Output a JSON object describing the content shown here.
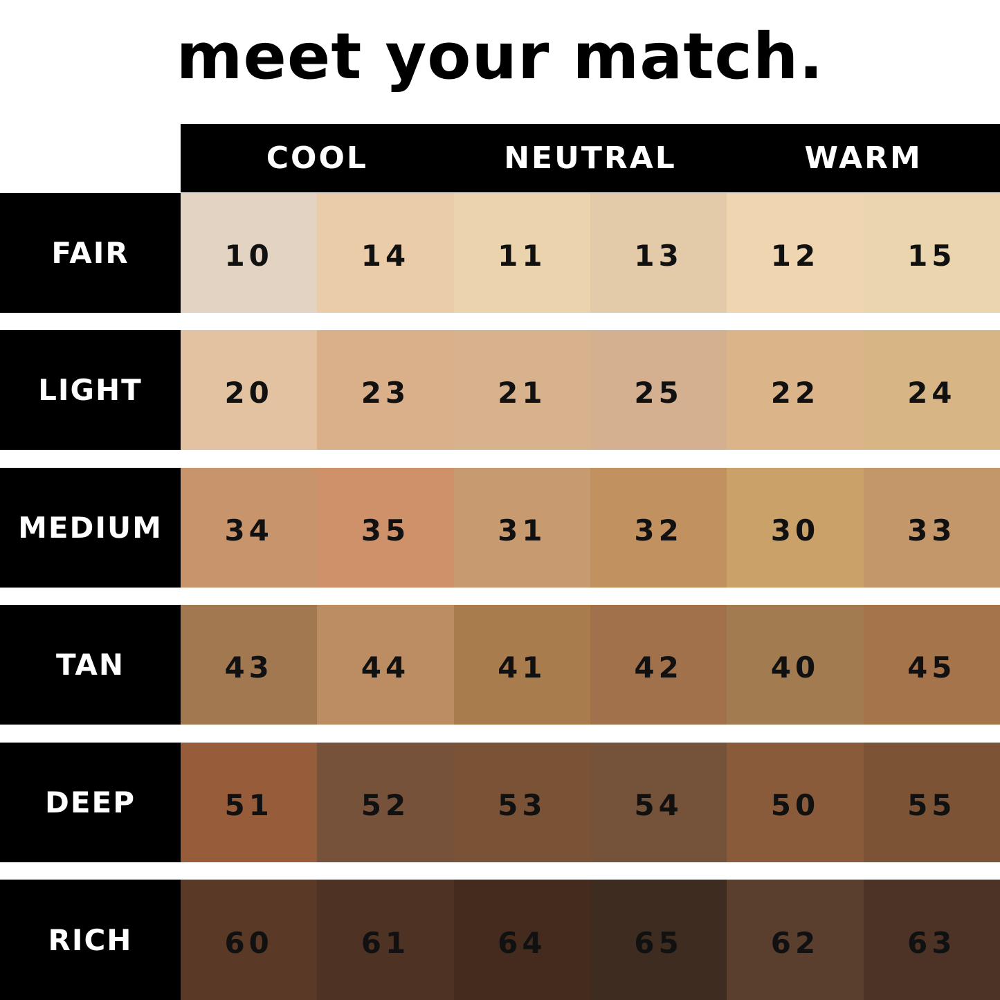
{
  "title": "meet your match.",
  "columns": [
    "COOL",
    "NEUTRAL",
    "WARM"
  ],
  "rows": [
    {
      "label": "FAIR",
      "shades": [
        {
          "num": "10",
          "color": "#e3d3c2"
        },
        {
          "num": "14",
          "color": "#ebcca8"
        },
        {
          "num": "11",
          "color": "#ebd3ae"
        },
        {
          "num": "13",
          "color": "#e3caa9"
        },
        {
          "num": "12",
          "color": "#efd6b0"
        },
        {
          "num": "15",
          "color": "#ebd5ae"
        }
      ]
    },
    {
      "label": "LIGHT",
      "shades": [
        {
          "num": "20",
          "color": "#e2c2a0"
        },
        {
          "num": "23",
          "color": "#d9b08a"
        },
        {
          "num": "21",
          "color": "#d8b28c"
        },
        {
          "num": "25",
          "color": "#d4b090"
        },
        {
          "num": "22",
          "color": "#dcb48a"
        },
        {
          "num": "24",
          "color": "#d8b584"
        }
      ]
    },
    {
      "label": "MEDIUM",
      "shades": [
        {
          "num": "34",
          "color": "#c8946c"
        },
        {
          "num": "35",
          "color": "#cf9169"
        },
        {
          "num": "31",
          "color": "#c89a70"
        },
        {
          "num": "32",
          "color": "#c19160"
        },
        {
          "num": "30",
          "color": "#cba16a"
        },
        {
          "num": "33",
          "color": "#c3976a"
        }
      ]
    },
    {
      "label": "TAN",
      "shades": [
        {
          "num": "43",
          "color": "#a27850"
        },
        {
          "num": "44",
          "color": "#bc8c62"
        },
        {
          "num": "41",
          "color": "#a97c4e"
        },
        {
          "num": "42",
          "color": "#a1714c"
        },
        {
          "num": "40",
          "color": "#a27c50"
        },
        {
          "num": "45",
          "color": "#a6744a"
        }
      ]
    },
    {
      "label": "DEEP",
      "shades": [
        {
          "num": "51",
          "color": "#975c3a"
        },
        {
          "num": "52",
          "color": "#77523a"
        },
        {
          "num": "53",
          "color": "#7a5236"
        },
        {
          "num": "54",
          "color": "#75533a"
        },
        {
          "num": "50",
          "color": "#8a5b3a"
        },
        {
          "num": "55",
          "color": "#7c5335"
        }
      ]
    },
    {
      "label": "RICH",
      "shades": [
        {
          "num": "60",
          "color": "#5a3a26"
        },
        {
          "num": "61",
          "color": "#4e3224"
        },
        {
          "num": "64",
          "color": "#452b1e"
        },
        {
          "num": "65",
          "color": "#3f2c21"
        },
        {
          "num": "62",
          "color": "#5a3e2e"
        },
        {
          "num": "63",
          "color": "#4d3326"
        }
      ]
    }
  ]
}
